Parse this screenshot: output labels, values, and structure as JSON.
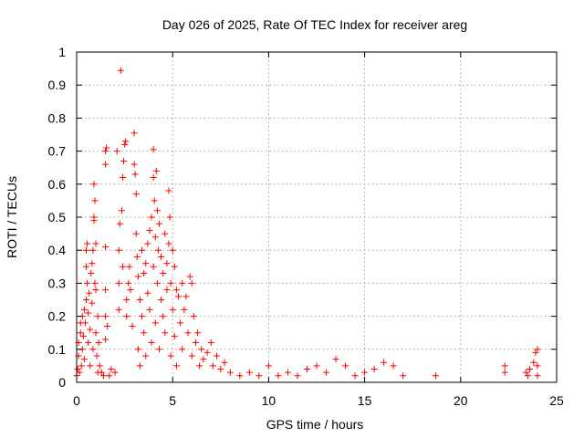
{
  "chart_data": {
    "type": "scatter",
    "title": "Day 026 of 2025, Rate Of TEC Index for receiver areg",
    "xlabel": "GPS time / hours",
    "ylabel": "ROTI / TECUs",
    "xlim": [
      0,
      25
    ],
    "ylim": [
      0,
      1
    ],
    "xticks": [
      0,
      5,
      10,
      15,
      20,
      25
    ],
    "xtick_labels": [
      "0",
      "5",
      "10",
      "15",
      "20",
      "25"
    ],
    "yticks": [
      0,
      0.1,
      0.2,
      0.3,
      0.4,
      0.5,
      0.6,
      0.7,
      0.8,
      0.9,
      1
    ],
    "ytick_labels": [
      "0",
      "0.1",
      "0.2",
      "0.3",
      "0.4",
      "0.5",
      "0.6",
      "0.7",
      "0.8",
      "0.9",
      "1"
    ],
    "grid": true,
    "marker": "+",
    "color": "#ff0000",
    "series": [
      {
        "points": [
          [
            0.0,
            0.02
          ],
          [
            0.05,
            0.04
          ],
          [
            0.1,
            0.08
          ],
          [
            0.1,
            0.12
          ],
          [
            0.15,
            0.03
          ],
          [
            0.2,
            0.15
          ],
          [
            0.2,
            0.18
          ],
          [
            0.25,
            0.05
          ],
          [
            0.3,
            0.1
          ],
          [
            0.3,
            0.2
          ],
          [
            0.35,
            0.14
          ],
          [
            0.4,
            0.22
          ],
          [
            0.4,
            0.07
          ],
          [
            0.45,
            0.18
          ],
          [
            0.5,
            0.25
          ],
          [
            0.5,
            0.35
          ],
          [
            0.5,
            0.4
          ],
          [
            0.55,
            0.42
          ],
          [
            0.55,
            0.3
          ],
          [
            0.6,
            0.12
          ],
          [
            0.6,
            0.21
          ],
          [
            0.65,
            0.27
          ],
          [
            0.7,
            0.05
          ],
          [
            0.7,
            0.16
          ],
          [
            0.75,
            0.33
          ],
          [
            0.8,
            0.36
          ],
          [
            0.8,
            0.24
          ],
          [
            0.85,
            0.1
          ],
          [
            0.85,
            0.4
          ],
          [
            0.9,
            0.49
          ],
          [
            0.9,
            0.5
          ],
          [
            0.9,
            0.6
          ],
          [
            0.95,
            0.55
          ],
          [
            0.95,
            0.3
          ],
          [
            1.0,
            0.28
          ],
          [
            1.0,
            0.42
          ],
          [
            1.0,
            0.15
          ],
          [
            1.05,
            0.08
          ],
          [
            1.1,
            0.2
          ],
          [
            1.1,
            0.03
          ],
          [
            1.15,
            0.12
          ],
          [
            1.2,
            0.05
          ],
          [
            1.3,
            0.03
          ],
          [
            1.4,
            0.02
          ],
          [
            1.5,
            0.13
          ],
          [
            1.5,
            0.2
          ],
          [
            1.5,
            0.28
          ],
          [
            1.5,
            0.41
          ],
          [
            1.5,
            0.66
          ],
          [
            1.5,
            0.7
          ],
          [
            1.55,
            0.71
          ],
          [
            1.6,
            0.17
          ],
          [
            1.7,
            0.02
          ],
          [
            1.8,
            0.04
          ],
          [
            2.0,
            0.03
          ],
          [
            2.1,
            0.7
          ],
          [
            2.2,
            0.22
          ],
          [
            2.2,
            0.3
          ],
          [
            2.2,
            0.4
          ],
          [
            2.25,
            0.48
          ],
          [
            2.3,
            0.944
          ],
          [
            2.35,
            0.52
          ],
          [
            2.4,
            0.62
          ],
          [
            2.4,
            0.35
          ],
          [
            2.45,
            0.67
          ],
          [
            2.5,
            0.72
          ],
          [
            2.55,
            0.73
          ],
          [
            2.6,
            0.2
          ],
          [
            2.6,
            0.25
          ],
          [
            2.7,
            0.3
          ],
          [
            2.75,
            0.35
          ],
          [
            2.8,
            0.28
          ],
          [
            2.9,
            0.17
          ],
          [
            3.0,
            0.755
          ],
          [
            3.0,
            0.66
          ],
          [
            3.05,
            0.63
          ],
          [
            3.1,
            0.57
          ],
          [
            3.1,
            0.45
          ],
          [
            3.15,
            0.38
          ],
          [
            3.2,
            0.32
          ],
          [
            3.2,
            0.1
          ],
          [
            3.3,
            0.25
          ],
          [
            3.3,
            0.05
          ],
          [
            3.4,
            0.4
          ],
          [
            3.4,
            0.2
          ],
          [
            3.5,
            0.33
          ],
          [
            3.5,
            0.15
          ],
          [
            3.6,
            0.36
          ],
          [
            3.6,
            0.08
          ],
          [
            3.7,
            0.42
          ],
          [
            3.7,
            0.27
          ],
          [
            3.8,
            0.46
          ],
          [
            3.8,
            0.22
          ],
          [
            3.9,
            0.5
          ],
          [
            3.9,
            0.12
          ],
          [
            4.0,
            0.705
          ],
          [
            4.0,
            0.62
          ],
          [
            4.0,
            0.35
          ],
          [
            4.05,
            0.55
          ],
          [
            4.1,
            0.44
          ],
          [
            4.1,
            0.18
          ],
          [
            4.15,
            0.64
          ],
          [
            4.2,
            0.52
          ],
          [
            4.2,
            0.3
          ],
          [
            4.25,
            0.4
          ],
          [
            4.3,
            0.48
          ],
          [
            4.3,
            0.1
          ],
          [
            4.4,
            0.38
          ],
          [
            4.4,
            0.25
          ],
          [
            4.5,
            0.33
          ],
          [
            4.5,
            0.2
          ],
          [
            4.6,
            0.45
          ],
          [
            4.6,
            0.15
          ],
          [
            4.7,
            0.36
          ],
          [
            4.7,
            0.28
          ],
          [
            4.8,
            0.58
          ],
          [
            4.8,
            0.42
          ],
          [
            4.85,
            0.5
          ],
          [
            4.9,
            0.3
          ],
          [
            4.9,
            0.08
          ],
          [
            5.0,
            0.4
          ],
          [
            5.0,
            0.22
          ],
          [
            5.1,
            0.35
          ],
          [
            5.1,
            0.14
          ],
          [
            5.2,
            0.28
          ],
          [
            5.2,
            0.05
          ],
          [
            5.3,
            0.26
          ],
          [
            5.4,
            0.18
          ],
          [
            5.5,
            0.3
          ],
          [
            5.5,
            0.1
          ],
          [
            5.6,
            0.22
          ],
          [
            5.7,
            0.26
          ],
          [
            5.8,
            0.15
          ],
          [
            5.9,
            0.32
          ],
          [
            6.0,
            0.3
          ],
          [
            6.0,
            0.08
          ],
          [
            6.1,
            0.2
          ],
          [
            6.2,
            0.12
          ],
          [
            6.3,
            0.15
          ],
          [
            6.4,
            0.05
          ],
          [
            6.5,
            0.1
          ],
          [
            6.6,
            0.07
          ],
          [
            6.8,
            0.09
          ],
          [
            7.0,
            0.12
          ],
          [
            7.1,
            0.05
          ],
          [
            7.3,
            0.08
          ],
          [
            7.5,
            0.04
          ],
          [
            7.7,
            0.06
          ],
          [
            8.0,
            0.03
          ],
          [
            8.5,
            0.02
          ],
          [
            9.0,
            0.03
          ],
          [
            9.5,
            0.02
          ],
          [
            10.0,
            0.05
          ],
          [
            10.5,
            0.02
          ],
          [
            11.0,
            0.03
          ],
          [
            11.5,
            0.02
          ],
          [
            12.0,
            0.04
          ],
          [
            12.5,
            0.05
          ],
          [
            13.0,
            0.03
          ],
          [
            13.5,
            0.07
          ],
          [
            14.0,
            0.05
          ],
          [
            14.5,
            0.02
          ],
          [
            15.0,
            0.03
          ],
          [
            15.5,
            0.04
          ],
          [
            16.0,
            0.06
          ],
          [
            16.5,
            0.05
          ],
          [
            17.0,
            0.02
          ],
          [
            18.7,
            0.02
          ],
          [
            22.3,
            0.03
          ],
          [
            22.3,
            0.05
          ],
          [
            23.4,
            0.03
          ],
          [
            23.5,
            0.02
          ],
          [
            23.6,
            0.04
          ],
          [
            23.8,
            0.06
          ],
          [
            23.9,
            0.09
          ],
          [
            24.0,
            0.1
          ],
          [
            24.0,
            0.05
          ],
          [
            24.0,
            0.02
          ]
        ]
      }
    ]
  }
}
